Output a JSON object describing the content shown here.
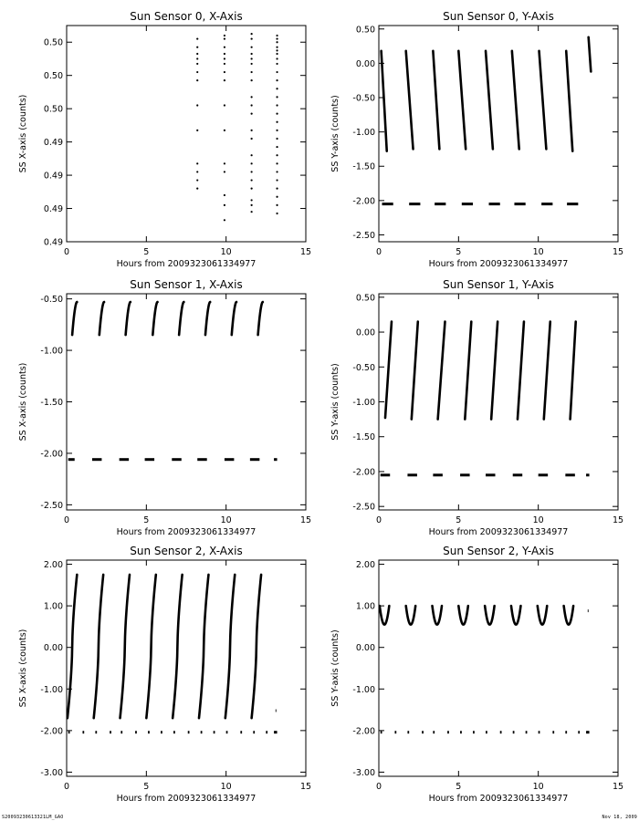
{
  "footer": {
    "file_label": "S20093230613321LM_GAO",
    "date_label": "Nov 18, 2009"
  },
  "chart_data": [
    {
      "type": "scatter",
      "title": "Sun Sensor 0, X-Axis",
      "xlabel": "Hours from 2009323061334977",
      "ylabel": "SS X-axis (counts)",
      "xlim": [
        0,
        15
      ],
      "ylim": [
        0.488,
        0.501
      ],
      "xticks": [
        0,
        5,
        10,
        15
      ],
      "yticks": [
        0.488,
        0.49,
        0.492,
        0.494,
        0.496,
        0.498,
        0.5
      ],
      "ytick_labels": [
        "0.49",
        "0.49",
        "0.49",
        "0.49",
        "0.50",
        "0.50",
        "0.50"
      ],
      "segments": [
        {
          "kind": "dots",
          "x": 8.2,
          "y_values": [
            0.4912,
            0.4917,
            0.4922,
            0.4927,
            0.4947,
            0.4962,
            0.4977,
            0.4982,
            0.4987,
            0.499,
            0.4993,
            0.4997,
            0.5002
          ]
        },
        {
          "kind": "dots",
          "x": 9.9,
          "y_values": [
            0.4893,
            0.4902,
            0.4908,
            0.4922,
            0.4927,
            0.4947,
            0.4962,
            0.4977,
            0.4982,
            0.4987,
            0.499,
            0.4993,
            0.4997,
            0.5002,
            0.5004
          ]
        },
        {
          "kind": "dots",
          "x": 11.6,
          "y_values": [
            0.4898,
            0.4902,
            0.4905,
            0.4912,
            0.4917,
            0.4922,
            0.4927,
            0.4932,
            0.4942,
            0.4947,
            0.4957,
            0.4962,
            0.4967,
            0.4977,
            0.4982,
            0.4987,
            0.499,
            0.4993,
            0.4997,
            0.5002,
            0.5005
          ]
        },
        {
          "kind": "dots",
          "x": 13.2,
          "y_values": [
            0.4897,
            0.4902,
            0.4907,
            0.4912,
            0.4917,
            0.4922,
            0.4927,
            0.4932,
            0.4937,
            0.4942,
            0.4947,
            0.4952,
            0.4957,
            0.4962,
            0.4967,
            0.4972,
            0.4977,
            0.4982,
            0.4987,
            0.499,
            0.4993,
            0.4995,
            0.4997,
            0.5,
            0.5002,
            0.5004
          ]
        }
      ]
    },
    {
      "type": "scatter",
      "title": "Sun Sensor 0, Y-Axis",
      "xlabel": "Hours from 2009323061334977",
      "ylabel": "SS Y-axis (counts)",
      "xlim": [
        0,
        15
      ],
      "ylim": [
        -2.6,
        0.55
      ],
      "xticks": [
        0,
        5,
        10,
        15
      ],
      "yticks": [
        -2.5,
        -2.0,
        -1.5,
        -1.0,
        -0.5,
        0.0,
        0.5
      ],
      "ytick_labels": [
        "-2.50",
        "-2.00",
        "-1.50",
        "-1.00",
        "-0.50",
        "0.00",
        "0.50"
      ],
      "segments": [
        {
          "kind": "curve",
          "x0": 0.15,
          "x1": 0.5,
          "y0": 0.18,
          "y1": -1.28,
          "shape": "linear"
        },
        {
          "kind": "curve",
          "x0": 1.7,
          "x1": 2.15,
          "y0": 0.18,
          "y1": -1.25,
          "shape": "linear"
        },
        {
          "kind": "curve",
          "x0": 3.4,
          "x1": 3.8,
          "y0": 0.18,
          "y1": -1.25,
          "shape": "linear"
        },
        {
          "kind": "curve",
          "x0": 5.0,
          "x1": 5.45,
          "y0": 0.18,
          "y1": -1.25,
          "shape": "linear"
        },
        {
          "kind": "curve",
          "x0": 6.7,
          "x1": 7.15,
          "y0": 0.18,
          "y1": -1.25,
          "shape": "linear"
        },
        {
          "kind": "curve",
          "x0": 8.35,
          "x1": 8.8,
          "y0": 0.18,
          "y1": -1.25,
          "shape": "linear"
        },
        {
          "kind": "curve",
          "x0": 10.05,
          "x1": 10.5,
          "y0": 0.18,
          "y1": -1.25,
          "shape": "linear"
        },
        {
          "kind": "curve",
          "x0": 11.75,
          "x1": 12.15,
          "y0": 0.18,
          "y1": -1.28,
          "shape": "linear"
        },
        {
          "kind": "curve",
          "x0": 13.15,
          "x1": 13.3,
          "y0": 0.38,
          "y1": -0.12,
          "shape": "linear"
        },
        {
          "kind": "hline",
          "x0": 0.2,
          "x1": 0.9,
          "y": -2.05
        },
        {
          "kind": "hline",
          "x0": 1.9,
          "x1": 2.6,
          "y": -2.05
        },
        {
          "kind": "hline",
          "x0": 3.5,
          "x1": 4.2,
          "y": -2.05
        },
        {
          "kind": "hline",
          "x0": 5.2,
          "x1": 5.9,
          "y": -2.05
        },
        {
          "kind": "hline",
          "x0": 6.9,
          "x1": 7.6,
          "y": -2.05
        },
        {
          "kind": "hline",
          "x0": 8.5,
          "x1": 9.2,
          "y": -2.05
        },
        {
          "kind": "hline",
          "x0": 10.2,
          "x1": 10.9,
          "y": -2.05
        },
        {
          "kind": "hline",
          "x0": 11.8,
          "x1": 12.5,
          "y": -2.05
        }
      ]
    },
    {
      "type": "scatter",
      "title": "Sun Sensor 1, X-Axis",
      "xlabel": "Hours from 2009323061334977",
      "ylabel": "SS X-axis (counts)",
      "xlim": [
        0,
        15
      ],
      "ylim": [
        -2.55,
        -0.45
      ],
      "xticks": [
        0,
        5,
        10,
        15
      ],
      "yticks": [
        -2.5,
        -2.0,
        -1.5,
        -1.0,
        -0.5
      ],
      "ytick_labels": [
        "-2.50",
        "-2.00",
        "-1.50",
        "-1.00",
        "-0.50"
      ],
      "segments": [
        {
          "kind": "curve",
          "x0": 0.35,
          "x1": 0.65,
          "y0": -0.85,
          "y1": -0.53,
          "shape": "concave"
        },
        {
          "kind": "curve",
          "x0": 2.05,
          "x1": 2.35,
          "y0": -0.85,
          "y1": -0.53,
          "shape": "concave"
        },
        {
          "kind": "curve",
          "x0": 3.7,
          "x1": 4.0,
          "y0": -0.85,
          "y1": -0.53,
          "shape": "concave"
        },
        {
          "kind": "curve",
          "x0": 5.4,
          "x1": 5.7,
          "y0": -0.85,
          "y1": -0.53,
          "shape": "concave"
        },
        {
          "kind": "curve",
          "x0": 7.05,
          "x1": 7.35,
          "y0": -0.85,
          "y1": -0.53,
          "shape": "concave"
        },
        {
          "kind": "curve",
          "x0": 8.7,
          "x1": 9.0,
          "y0": -0.85,
          "y1": -0.53,
          "shape": "concave"
        },
        {
          "kind": "curve",
          "x0": 10.35,
          "x1": 10.65,
          "y0": -0.85,
          "y1": -0.53,
          "shape": "concave"
        },
        {
          "kind": "curve",
          "x0": 12.0,
          "x1": 12.3,
          "y0": -0.85,
          "y1": -0.53,
          "shape": "concave"
        },
        {
          "kind": "hline",
          "x0": 0.1,
          "x1": 0.5,
          "y": -2.06
        },
        {
          "kind": "hline",
          "x0": 1.6,
          "x1": 2.2,
          "y": -2.06
        },
        {
          "kind": "hline",
          "x0": 3.3,
          "x1": 3.9,
          "y": -2.06
        },
        {
          "kind": "hline",
          "x0": 4.9,
          "x1": 5.5,
          "y": -2.06
        },
        {
          "kind": "hline",
          "x0": 6.6,
          "x1": 7.2,
          "y": -2.06
        },
        {
          "kind": "hline",
          "x0": 8.2,
          "x1": 8.8,
          "y": -2.06
        },
        {
          "kind": "hline",
          "x0": 9.9,
          "x1": 10.5,
          "y": -2.06
        },
        {
          "kind": "hline",
          "x0": 11.5,
          "x1": 12.1,
          "y": -2.06
        },
        {
          "kind": "hline",
          "x0": 13.0,
          "x1": 13.2,
          "y": -2.06
        }
      ]
    },
    {
      "type": "scatter",
      "title": "Sun Sensor 1, Y-Axis",
      "xlabel": "Hours from 2009323061334977",
      "ylabel": "SS Y-axis (counts)",
      "xlim": [
        0,
        15
      ],
      "ylim": [
        -2.55,
        0.55
      ],
      "xticks": [
        0,
        5,
        10,
        15
      ],
      "yticks": [
        -2.5,
        -2.0,
        -1.5,
        -1.0,
        -0.5,
        0.0,
        0.5
      ],
      "ytick_labels": [
        "-2.50",
        "-2.00",
        "-1.50",
        "-1.00",
        "-0.50",
        "0.00",
        "0.50"
      ],
      "segments": [
        {
          "kind": "curve",
          "x0": 0.4,
          "x1": 0.8,
          "y0": -1.23,
          "y1": 0.15,
          "shape": "linear"
        },
        {
          "kind": "curve",
          "x0": 2.05,
          "x1": 2.45,
          "y0": -1.25,
          "y1": 0.15,
          "shape": "linear"
        },
        {
          "kind": "curve",
          "x0": 3.7,
          "x1": 4.15,
          "y0": -1.25,
          "y1": 0.15,
          "shape": "linear"
        },
        {
          "kind": "curve",
          "x0": 5.4,
          "x1": 5.8,
          "y0": -1.25,
          "y1": 0.15,
          "shape": "linear"
        },
        {
          "kind": "curve",
          "x0": 7.05,
          "x1": 7.45,
          "y0": -1.25,
          "y1": 0.15,
          "shape": "linear"
        },
        {
          "kind": "curve",
          "x0": 8.7,
          "x1": 9.1,
          "y0": -1.25,
          "y1": 0.15,
          "shape": "linear"
        },
        {
          "kind": "curve",
          "x0": 10.35,
          "x1": 10.75,
          "y0": -1.25,
          "y1": 0.15,
          "shape": "linear"
        },
        {
          "kind": "curve",
          "x0": 12.0,
          "x1": 12.35,
          "y0": -1.25,
          "y1": 0.15,
          "shape": "linear"
        },
        {
          "kind": "hline",
          "x0": 0.1,
          "x1": 0.7,
          "y": -2.05
        },
        {
          "kind": "hline",
          "x0": 1.8,
          "x1": 2.4,
          "y": -2.05
        },
        {
          "kind": "hline",
          "x0": 3.4,
          "x1": 4.0,
          "y": -2.05
        },
        {
          "kind": "hline",
          "x0": 5.1,
          "x1": 5.7,
          "y": -2.05
        },
        {
          "kind": "hline",
          "x0": 6.7,
          "x1": 7.3,
          "y": -2.05
        },
        {
          "kind": "hline",
          "x0": 8.4,
          "x1": 9.0,
          "y": -2.05
        },
        {
          "kind": "hline",
          "x0": 10.0,
          "x1": 10.6,
          "y": -2.05
        },
        {
          "kind": "hline",
          "x0": 11.7,
          "x1": 12.3,
          "y": -2.05
        },
        {
          "kind": "hline",
          "x0": 13.0,
          "x1": 13.2,
          "y": -2.05
        }
      ]
    },
    {
      "type": "scatter",
      "title": "Sun Sensor 2, X-Axis",
      "xlabel": "Hours from 2009323061334977",
      "ylabel": "SS X-axis (counts)",
      "xlim": [
        0,
        15
      ],
      "ylim": [
        -3.1,
        2.1
      ],
      "xticks": [
        0,
        5,
        10,
        15
      ],
      "yticks": [
        -3.0,
        -2.0,
        -1.0,
        0.0,
        1.0,
        2.0
      ],
      "ytick_labels": [
        "-3.00",
        "-2.00",
        "-1.00",
        "0.00",
        "1.00",
        "2.00"
      ],
      "segments": [
        {
          "kind": "curve",
          "x0": 0.05,
          "x1": 0.65,
          "y0": -1.7,
          "y1": 1.75,
          "shape": "ramp"
        },
        {
          "kind": "curve",
          "x0": 1.7,
          "x1": 2.3,
          "y0": -1.7,
          "y1": 1.75,
          "shape": "ramp"
        },
        {
          "kind": "curve",
          "x0": 3.35,
          "x1": 3.95,
          "y0": -1.7,
          "y1": 1.75,
          "shape": "ramp"
        },
        {
          "kind": "curve",
          "x0": 5.0,
          "x1": 5.6,
          "y0": -1.7,
          "y1": 1.75,
          "shape": "ramp"
        },
        {
          "kind": "curve",
          "x0": 6.65,
          "x1": 7.25,
          "y0": -1.7,
          "y1": 1.75,
          "shape": "ramp"
        },
        {
          "kind": "curve",
          "x0": 8.3,
          "x1": 8.9,
          "y0": -1.7,
          "y1": 1.75,
          "shape": "ramp"
        },
        {
          "kind": "curve",
          "x0": 9.95,
          "x1": 10.55,
          "y0": -1.7,
          "y1": 1.75,
          "shape": "ramp"
        },
        {
          "kind": "curve",
          "x0": 11.6,
          "x1": 12.2,
          "y0": -1.7,
          "y1": 1.75,
          "shape": "ramp"
        },
        {
          "kind": "hline",
          "x0": 13.1,
          "x1": 13.15,
          "y": -1.52
        },
        {
          "kind": "hline",
          "x0": 0.1,
          "x1": 0.2,
          "y": -2.04
        },
        {
          "kind": "hline",
          "x0": 1.0,
          "x1": 1.1,
          "y": -2.04
        },
        {
          "kind": "hline",
          "x0": 1.8,
          "x1": 1.9,
          "y": -2.04
        },
        {
          "kind": "hline",
          "x0": 2.7,
          "x1": 2.8,
          "y": -2.04
        },
        {
          "kind": "hline",
          "x0": 3.4,
          "x1": 3.5,
          "y": -2.04
        },
        {
          "kind": "hline",
          "x0": 4.3,
          "x1": 4.4,
          "y": -2.04
        },
        {
          "kind": "hline",
          "x0": 5.1,
          "x1": 5.2,
          "y": -2.04
        },
        {
          "kind": "hline",
          "x0": 5.9,
          "x1": 6.0,
          "y": -2.04
        },
        {
          "kind": "hline",
          "x0": 6.7,
          "x1": 6.8,
          "y": -2.04
        },
        {
          "kind": "hline",
          "x0": 7.6,
          "x1": 7.7,
          "y": -2.04
        },
        {
          "kind": "hline",
          "x0": 8.4,
          "x1": 8.5,
          "y": -2.04
        },
        {
          "kind": "hline",
          "x0": 9.2,
          "x1": 9.3,
          "y": -2.04
        },
        {
          "kind": "hline",
          "x0": 10.0,
          "x1": 10.1,
          "y": -2.04
        },
        {
          "kind": "hline",
          "x0": 10.9,
          "x1": 11.0,
          "y": -2.04
        },
        {
          "kind": "hline",
          "x0": 11.7,
          "x1": 11.8,
          "y": -2.04
        },
        {
          "kind": "hline",
          "x0": 12.5,
          "x1": 12.6,
          "y": -2.04
        },
        {
          "kind": "hline",
          "x0": 13.0,
          "x1": 13.2,
          "y": -2.04
        }
      ]
    },
    {
      "type": "scatter",
      "title": "Sun Sensor 2, Y-Axis",
      "xlabel": "Hours from 2009323061334977",
      "ylabel": "SS Y-axis (counts)",
      "xlim": [
        0,
        15
      ],
      "ylim": [
        -3.1,
        2.1
      ],
      "xticks": [
        0,
        5,
        10,
        15
      ],
      "yticks": [
        -3.0,
        -2.0,
        -1.0,
        0.0,
        1.0,
        2.0
      ],
      "ytick_labels": [
        "-3.00",
        "-2.00",
        "-1.00",
        "0.00",
        "1.00",
        "2.00"
      ],
      "segments": [
        {
          "kind": "curve",
          "x0": 0.05,
          "x1": 0.65,
          "y0": 0.55,
          "y1": 1.0,
          "shape": "ushape"
        },
        {
          "kind": "curve",
          "x0": 1.7,
          "x1": 2.3,
          "y0": 0.55,
          "y1": 1.0,
          "shape": "ushape"
        },
        {
          "kind": "curve",
          "x0": 3.35,
          "x1": 3.95,
          "y0": 0.55,
          "y1": 1.0,
          "shape": "ushape"
        },
        {
          "kind": "curve",
          "x0": 5.0,
          "x1": 5.6,
          "y0": 0.55,
          "y1": 1.0,
          "shape": "ushape"
        },
        {
          "kind": "curve",
          "x0": 6.65,
          "x1": 7.25,
          "y0": 0.55,
          "y1": 1.0,
          "shape": "ushape"
        },
        {
          "kind": "curve",
          "x0": 8.3,
          "x1": 8.9,
          "y0": 0.55,
          "y1": 1.0,
          "shape": "ushape"
        },
        {
          "kind": "curve",
          "x0": 9.95,
          "x1": 10.55,
          "y0": 0.55,
          "y1": 1.0,
          "shape": "ushape"
        },
        {
          "kind": "curve",
          "x0": 11.6,
          "x1": 12.2,
          "y0": 0.55,
          "y1": 1.0,
          "shape": "ushape"
        },
        {
          "kind": "hline",
          "x0": 13.1,
          "x1": 13.15,
          "y": 0.88
        },
        {
          "kind": "hline",
          "x0": 0.1,
          "x1": 0.2,
          "y": -2.04
        },
        {
          "kind": "hline",
          "x0": 1.0,
          "x1": 1.1,
          "y": -2.04
        },
        {
          "kind": "hline",
          "x0": 1.8,
          "x1": 1.9,
          "y": -2.04
        },
        {
          "kind": "hline",
          "x0": 2.7,
          "x1": 2.8,
          "y": -2.04
        },
        {
          "kind": "hline",
          "x0": 3.4,
          "x1": 3.5,
          "y": -2.04
        },
        {
          "kind": "hline",
          "x0": 4.3,
          "x1": 4.4,
          "y": -2.04
        },
        {
          "kind": "hline",
          "x0": 5.1,
          "x1": 5.2,
          "y": -2.04
        },
        {
          "kind": "hline",
          "x0": 5.9,
          "x1": 6.0,
          "y": -2.04
        },
        {
          "kind": "hline",
          "x0": 6.7,
          "x1": 6.8,
          "y": -2.04
        },
        {
          "kind": "hline",
          "x0": 7.6,
          "x1": 7.7,
          "y": -2.04
        },
        {
          "kind": "hline",
          "x0": 8.4,
          "x1": 8.5,
          "y": -2.04
        },
        {
          "kind": "hline",
          "x0": 9.2,
          "x1": 9.3,
          "y": -2.04
        },
        {
          "kind": "hline",
          "x0": 10.0,
          "x1": 10.1,
          "y": -2.04
        },
        {
          "kind": "hline",
          "x0": 10.9,
          "x1": 11.0,
          "y": -2.04
        },
        {
          "kind": "hline",
          "x0": 11.7,
          "x1": 11.8,
          "y": -2.04
        },
        {
          "kind": "hline",
          "x0": 12.5,
          "x1": 12.6,
          "y": -2.04
        },
        {
          "kind": "hline",
          "x0": 13.0,
          "x1": 13.2,
          "y": -2.04
        }
      ]
    }
  ]
}
